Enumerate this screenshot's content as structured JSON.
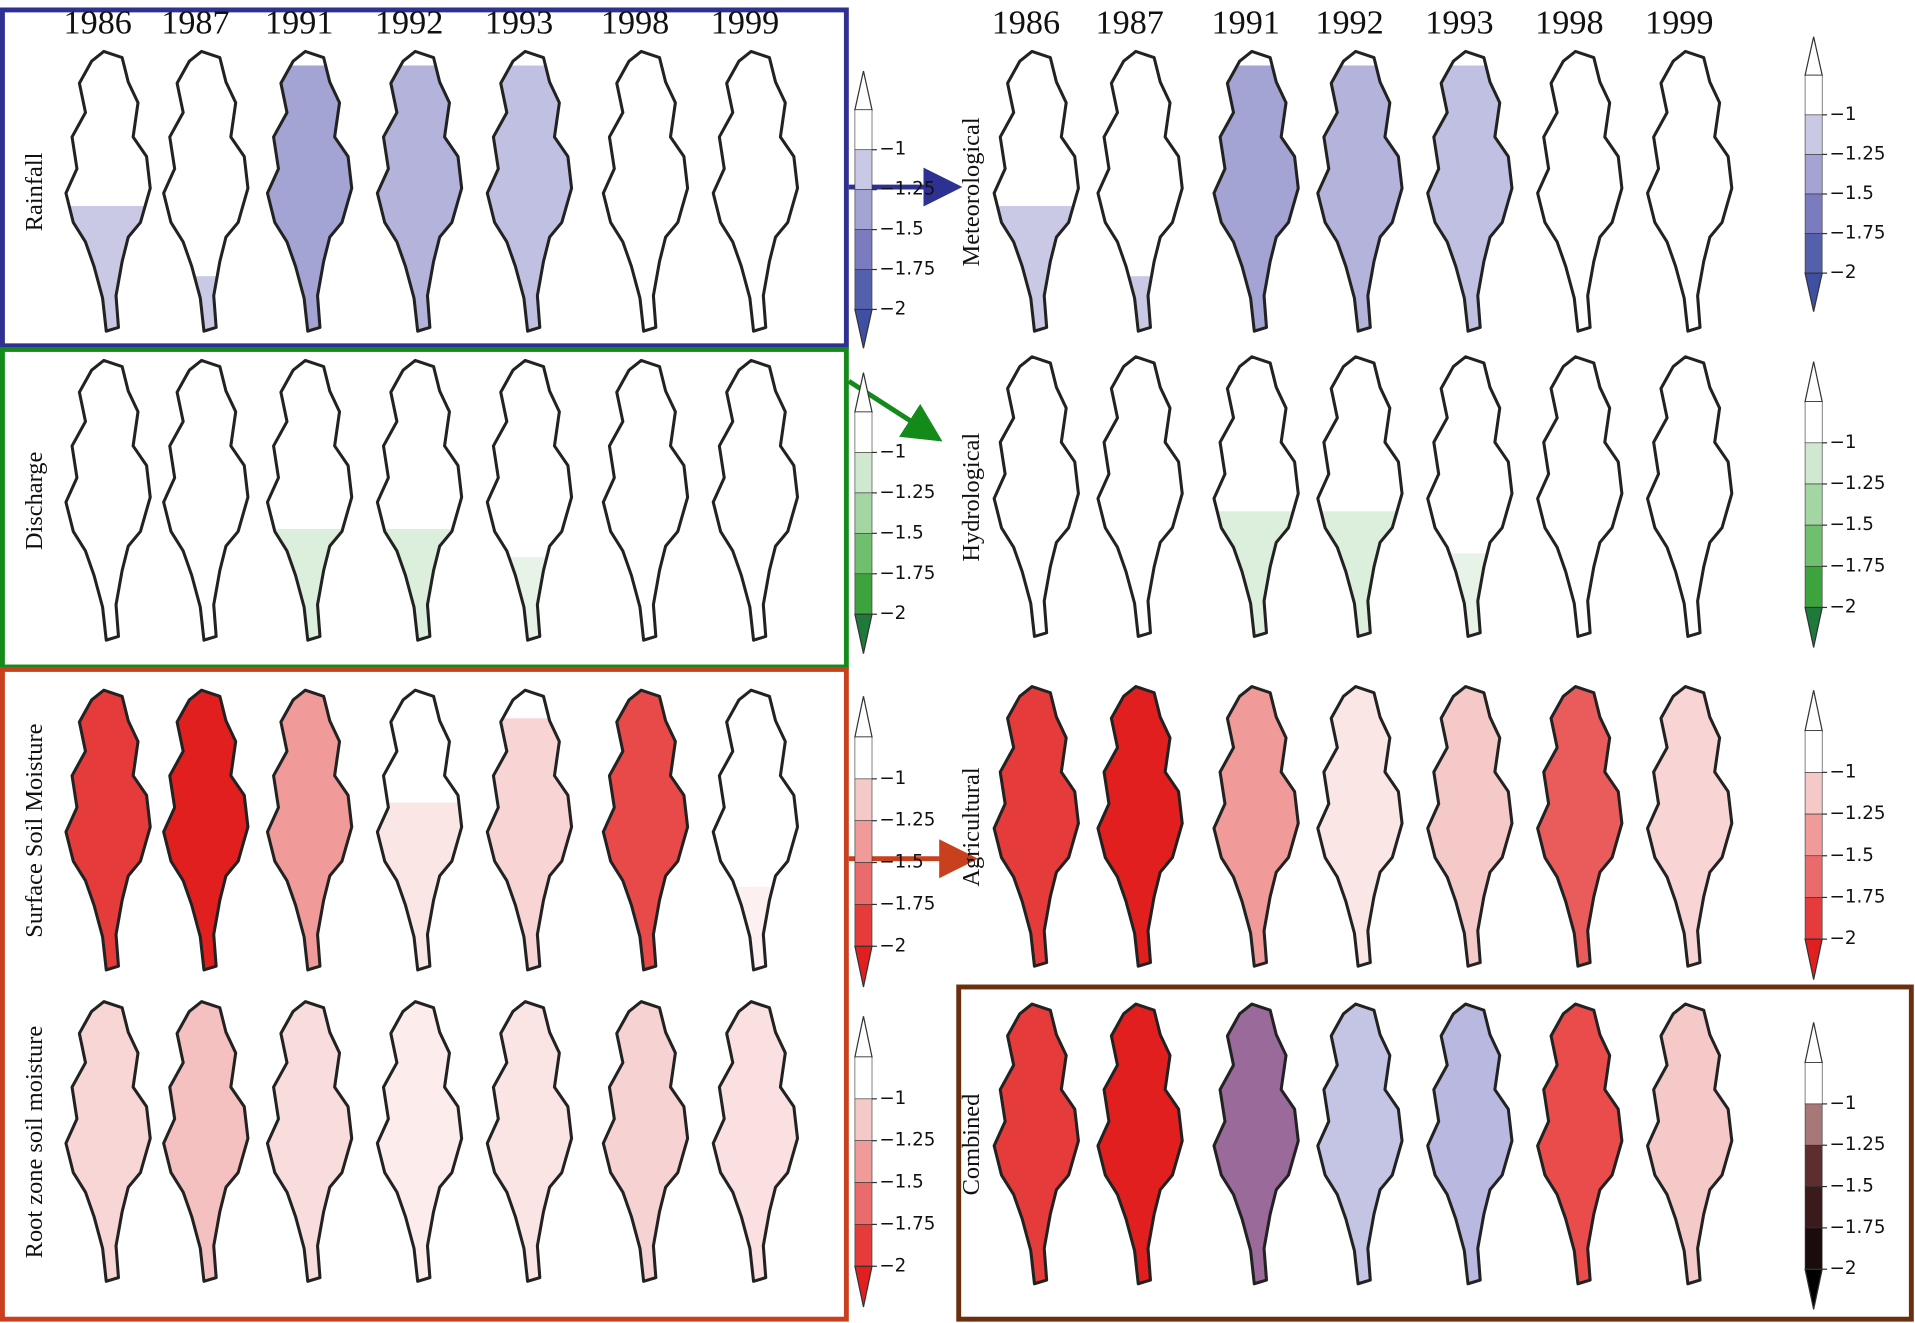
{
  "years_left": [
    1986,
    1987,
    1991,
    1992,
    1993,
    1998,
    1999
  ],
  "years_right": [
    1986,
    1987,
    1991,
    1992,
    1993,
    1998,
    1999
  ],
  "colorbar_ticks": [
    "−1",
    "−1.25",
    "−1.5",
    "−1.75",
    "−2"
  ],
  "inputs": [
    {
      "label": "Rainfall",
      "palette": [
        "#c9c9e6",
        "#a3a3d4",
        "#7b7bc0",
        "#5560ad",
        "#3f4fa3"
      ],
      "map_colors": [
        "#c9c9e6",
        "#c9c9e6",
        "#a3a3d4",
        "#b3b3dc",
        "#c0c0e2",
        "#ffffff",
        "#ffffff"
      ],
      "coverage": [
        0.45,
        0.2,
        0.95,
        0.95,
        0.95,
        0,
        0
      ]
    },
    {
      "label": "Discharge",
      "palette": [
        "#cfe8cf",
        "#a3d6a3",
        "#6fbf6f",
        "#3da33d",
        "#1e7a3a"
      ],
      "map_colors": [
        "#ffffff",
        "#ffffff",
        "#dcefdc",
        "#dcefdc",
        "#e6f3e6",
        "#ffffff",
        "#ffffff"
      ],
      "coverage": [
        0,
        0,
        0.4,
        0.4,
        0.3,
        0,
        0
      ]
    },
    {
      "label": "Surface Soil Moisture",
      "palette": [
        "#f6c9c9",
        "#f09a9a",
        "#ea6b6b",
        "#e63b3b",
        "#e21f1f"
      ],
      "map_colors": [
        "#e63b3b",
        "#e21f1f",
        "#f09a9a",
        "#fbe6e6",
        "#f8d4d4",
        "#e84a4a",
        "#fdf0f0"
      ],
      "coverage": [
        1,
        1,
        1,
        0.6,
        0.9,
        1,
        0.3
      ]
    },
    {
      "label": "Root zone soil moisture",
      "palette": [
        "#f6c9c9",
        "#f09a9a",
        "#ea6b6b",
        "#e63b3b",
        "#e21f1f"
      ],
      "map_colors": [
        "#f8d6d6",
        "#f4c0c0",
        "#f9dcdc",
        "#fcecec",
        "#fae4e4",
        "#f7d2d2",
        "#fae0e0"
      ],
      "coverage": [
        1,
        1,
        1,
        1,
        1,
        1,
        1
      ]
    }
  ],
  "indices": [
    {
      "label": "Meteorological",
      "palette": [
        "#c9c9e6",
        "#a3a3d4",
        "#7b7bc0",
        "#5560ad",
        "#3f4fa3"
      ],
      "map_colors": [
        "#c9c9e6",
        "#c9c9e6",
        "#a3a3d4",
        "#b3b3dc",
        "#c0c0e2",
        "#ffffff",
        "#ffffff"
      ],
      "coverage": [
        0.45,
        0.2,
        0.95,
        0.95,
        0.95,
        0,
        0
      ]
    },
    {
      "label": "Hydrological",
      "palette": [
        "#cfe8cf",
        "#a3d6a3",
        "#6fbf6f",
        "#3da33d",
        "#1e7a3a"
      ],
      "map_colors": [
        "#ffffff",
        "#ffffff",
        "#dcefdc",
        "#dcefdc",
        "#e6f3e6",
        "#ffffff",
        "#ffffff"
      ],
      "coverage": [
        0,
        0,
        0.45,
        0.45,
        0.3,
        0,
        0
      ]
    },
    {
      "label": "Agricultural",
      "palette": [
        "#f6c9c9",
        "#f09a9a",
        "#ea6b6b",
        "#e63b3b",
        "#e21f1f"
      ],
      "map_colors": [
        "#e63b3b",
        "#e21f1f",
        "#f09a9a",
        "#fbe6e6",
        "#f6c9c9",
        "#ea5b5b",
        "#f8d4d4"
      ],
      "coverage": [
        1,
        1,
        1,
        1,
        1,
        1,
        1
      ]
    },
    {
      "label": "Combined",
      "palette": [
        "#a87878",
        "#5e2e2e",
        "#3a1a1a",
        "#1a0c0c",
        "#000000"
      ],
      "map_colors": [
        "#e63b3b",
        "#e21f1f",
        "#9a6a9a",
        "#c4c4e4",
        "#b8b8e0",
        "#ea4b4b",
        "#f6c9c9"
      ],
      "coverage": [
        1,
        1,
        1,
        1,
        1,
        1,
        1
      ]
    }
  ]
}
